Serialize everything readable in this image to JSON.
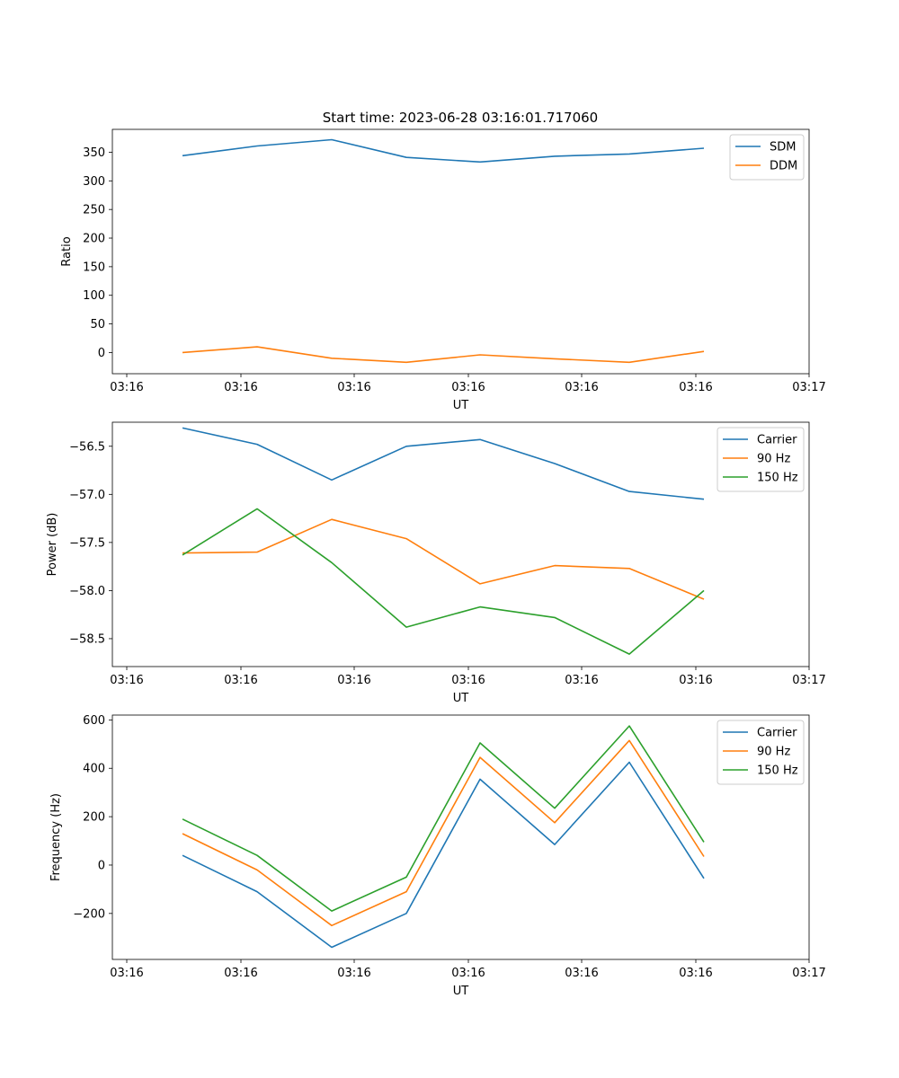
{
  "figure": {
    "title": "Start time: 2023-06-28 03:16:01.717060"
  },
  "colors": {
    "blue": "#1f77b4",
    "orange": "#ff7f0e",
    "green": "#2ca02c"
  },
  "chart_data": [
    {
      "type": "line",
      "title": "Start time: 2023-06-28 03:16:01.717060",
      "xlabel": "UT",
      "ylabel": "Ratio",
      "x_tick_labels": [
        "03:16",
        "03:16",
        "03:16",
        "03:16",
        "03:16",
        "03:16",
        "03:17"
      ],
      "yticks": [
        0,
        50,
        100,
        150,
        200,
        250,
        300,
        350
      ],
      "ylim": [
        -37,
        390
      ],
      "grid": false,
      "legend_position": "top-right",
      "series": [
        {
          "name": "SDM",
          "color": "#1f77b4",
          "values": [
            344,
            361,
            372,
            341,
            333,
            343,
            347,
            357
          ]
        },
        {
          "name": "DDM",
          "color": "#ff7f0e",
          "values": [
            0,
            10,
            -10,
            -17,
            -4,
            -11,
            -17,
            2
          ]
        }
      ]
    },
    {
      "type": "line",
      "title": "",
      "xlabel": "UT",
      "ylabel": "Power (dB)",
      "x_tick_labels": [
        "03:16",
        "03:16",
        "03:16",
        "03:16",
        "03:16",
        "03:16",
        "03:17"
      ],
      "yticks": [
        -58.5,
        -58.0,
        -57.5,
        -57.0,
        -56.5
      ],
      "ytick_labels": [
        "−58.5",
        "−58.0",
        "−57.5",
        "−57.0",
        "−56.5"
      ],
      "ylim": [
        -58.79,
        -56.25
      ],
      "grid": false,
      "legend_position": "top-right",
      "series": [
        {
          "name": "Carrier",
          "color": "#1f77b4",
          "values": [
            -56.31,
            -56.48,
            -56.85,
            -56.5,
            -56.43,
            -56.68,
            -56.97,
            -57.05
          ]
        },
        {
          "name": "90 Hz",
          "color": "#ff7f0e",
          "values": [
            -57.61,
            -57.6,
            -57.26,
            -57.46,
            -57.93,
            -57.74,
            -57.77,
            -58.09
          ]
        },
        {
          "name": "150 Hz",
          "color": "#2ca02c",
          "values": [
            -57.63,
            -57.15,
            -57.71,
            -58.38,
            -58.17,
            -58.28,
            -58.66,
            -58.0
          ]
        }
      ]
    },
    {
      "type": "line",
      "title": "",
      "xlabel": "UT",
      "ylabel": "Frequency (Hz)",
      "x_tick_labels": [
        "03:16",
        "03:16",
        "03:16",
        "03:16",
        "03:16",
        "03:16",
        "03:17"
      ],
      "yticks": [
        -200,
        0,
        200,
        400,
        600
      ],
      "ytick_labels": [
        "−200",
        "0",
        "200",
        "400",
        "600"
      ],
      "ylim": [
        -390,
        620
      ],
      "grid": false,
      "legend_position": "top-right",
      "series": [
        {
          "name": "Carrier",
          "color": "#1f77b4",
          "values": [
            40,
            -110,
            -340,
            -200,
            355,
            85,
            425,
            -55
          ]
        },
        {
          "name": "90 Hz",
          "color": "#ff7f0e",
          "values": [
            130,
            -20,
            -250,
            -110,
            445,
            175,
            515,
            35
          ]
        },
        {
          "name": "150 Hz",
          "color": "#2ca02c",
          "values": [
            190,
            40,
            -190,
            -50,
            505,
            235,
            575,
            95
          ]
        }
      ]
    }
  ]
}
